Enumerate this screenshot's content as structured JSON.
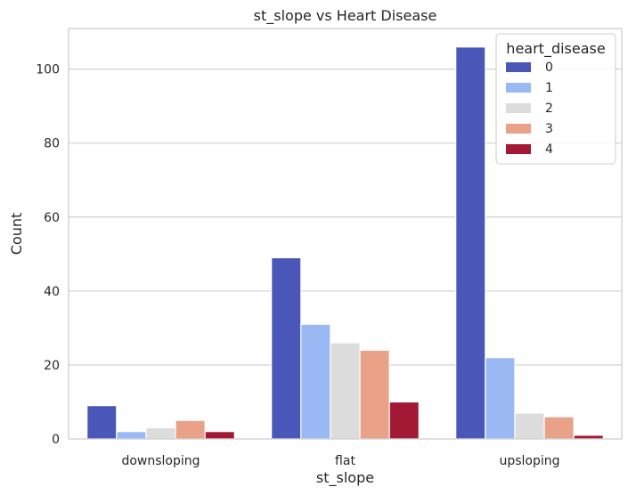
{
  "chart_data": {
    "type": "bar",
    "title": "st_slope vs Heart Disease",
    "xlabel": "st_slope",
    "ylabel": "Count",
    "categories": [
      "downsloping",
      "flat",
      "upsloping"
    ],
    "ylim": [
      0,
      111
    ],
    "yticks": [
      0,
      20,
      40,
      60,
      80,
      100
    ],
    "grid": "horizontal",
    "legend": {
      "title": "heart_disease",
      "placement": "top-right"
    },
    "series": [
      {
        "name": "0",
        "color": "#4a56b8",
        "values": [
          9,
          49,
          106
        ]
      },
      {
        "name": "1",
        "color": "#9ab9f4",
        "values": [
          2,
          31,
          22
        ]
      },
      {
        "name": "2",
        "color": "#dcdcdc",
        "values": [
          3,
          26,
          7
        ]
      },
      {
        "name": "3",
        "color": "#e9a188",
        "values": [
          5,
          24,
          6
        ]
      },
      {
        "name": "4",
        "color": "#a31834",
        "values": [
          2,
          10,
          1
        ]
      }
    ]
  }
}
